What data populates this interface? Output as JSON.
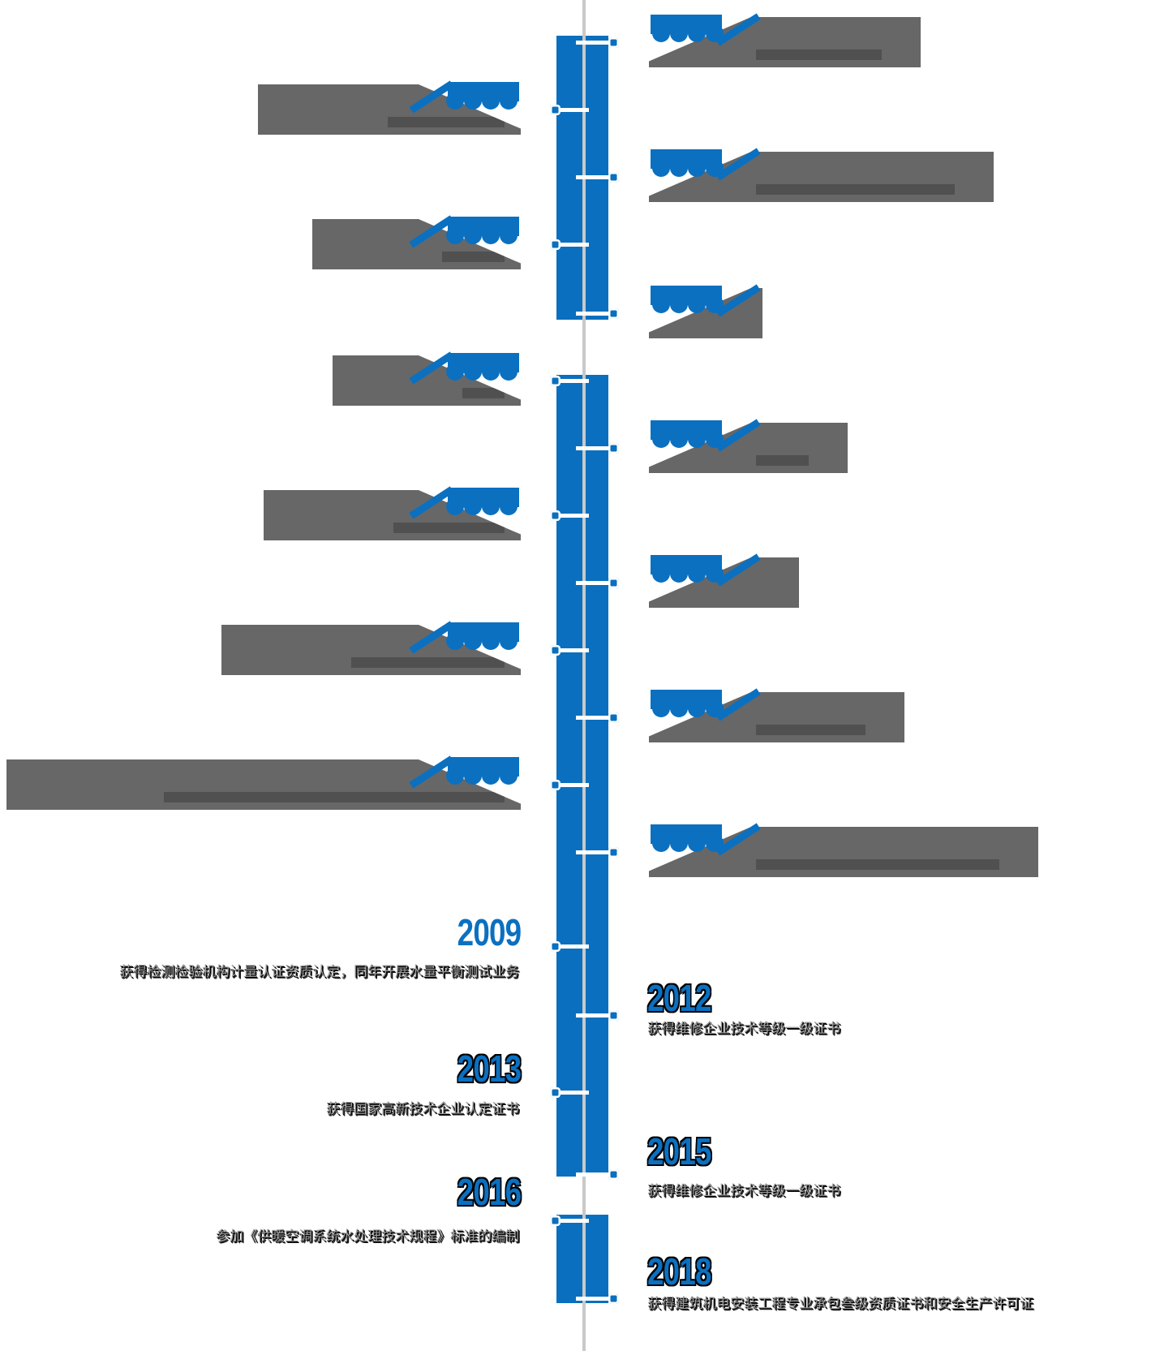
{
  "page": {
    "language": "zh-CN",
    "background": "#ffffff"
  },
  "colors": {
    "accent_blue": "#0b70c0",
    "bar_blue": "#0a6fbe",
    "block_gray": "#676767",
    "center_line_gray": "#c9c9c9",
    "desc_text_gray": "#9a9a9a"
  },
  "timeline": {
    "entries": [
      {
        "id": "e01",
        "side": "right",
        "obscured": true,
        "year": "",
        "description": ""
      },
      {
        "id": "e02",
        "side": "left",
        "obscured": true,
        "year": "",
        "description": ""
      },
      {
        "id": "e03",
        "side": "right",
        "obscured": true,
        "year": "",
        "description": ""
      },
      {
        "id": "e04",
        "side": "left",
        "obscured": true,
        "year": "",
        "description": ""
      },
      {
        "id": "e05",
        "side": "right",
        "obscured": true,
        "year": "",
        "description": ""
      },
      {
        "id": "e06",
        "side": "left",
        "obscured": true,
        "year": "",
        "description": ""
      },
      {
        "id": "e07",
        "side": "right",
        "obscured": true,
        "year": "",
        "description": ""
      },
      {
        "id": "e08",
        "side": "left",
        "obscured": true,
        "year": "",
        "description": ""
      },
      {
        "id": "e09",
        "side": "right",
        "obscured": true,
        "year": "",
        "description": ""
      },
      {
        "id": "e10",
        "side": "left",
        "obscured": true,
        "year": "",
        "description": ""
      },
      {
        "id": "e11",
        "side": "right",
        "obscured": true,
        "year": "",
        "description": ""
      },
      {
        "id": "e12",
        "side": "left",
        "obscured": true,
        "year": "",
        "description": ""
      },
      {
        "id": "e13",
        "side": "right",
        "obscured": true,
        "year": "",
        "description": ""
      },
      {
        "id": "e14",
        "side": "left",
        "obscured": false,
        "year": "2009",
        "year_shadow": false,
        "description": "获得检测检验机构计量认证资质认定，同年开展水量平衡测试业务"
      },
      {
        "id": "e15",
        "side": "right",
        "obscured": false,
        "year": "2012",
        "year_shadow": true,
        "description": "获得维修企业技术等级一级证书"
      },
      {
        "id": "e16",
        "side": "left",
        "obscured": false,
        "year": "2013",
        "year_shadow": true,
        "description": "获得国家高新技术企业认定证书"
      },
      {
        "id": "e17",
        "side": "right",
        "obscured": false,
        "year": "2015",
        "year_shadow": true,
        "description": "获得维修企业技术等级一级证书"
      },
      {
        "id": "e18",
        "side": "left",
        "obscured": false,
        "year": "2016",
        "year_shadow": true,
        "description": "参加《供暖空调系统水处理技术规程》标准的编制"
      },
      {
        "id": "e19",
        "side": "right",
        "obscured": false,
        "year": "2018",
        "year_shadow": true,
        "description": "获得建筑机电安装工程专业承包叁级资质证书和安全生产许可证"
      }
    ]
  }
}
